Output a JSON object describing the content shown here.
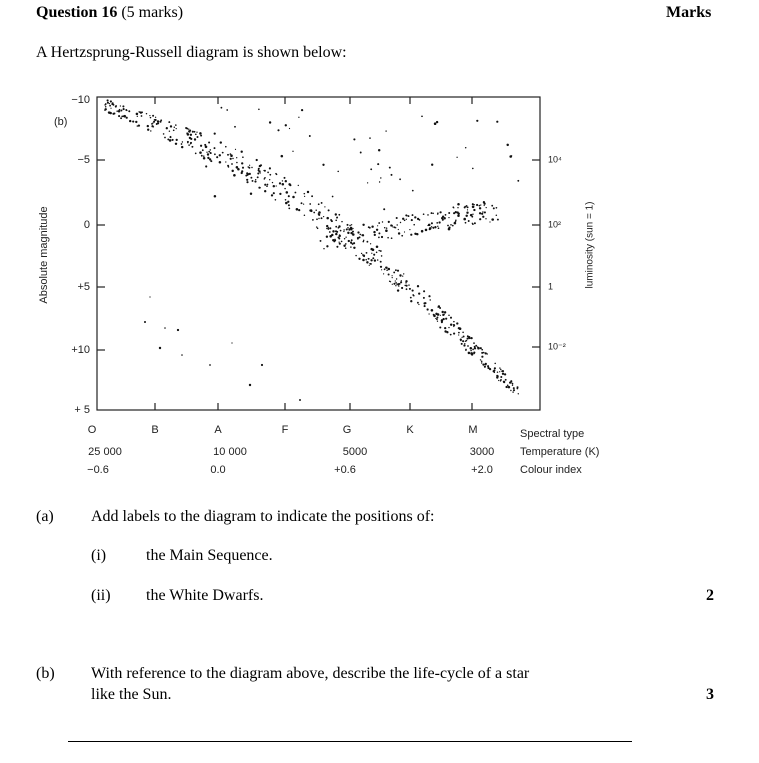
{
  "header": {
    "question": "Question 16",
    "marks_total": "(5 marks)",
    "marks_column": "Marks"
  },
  "intro": "A Hertzsprung-Russell diagram is shown below:",
  "diagram": {
    "part_label": "(b)",
    "y_axis_title": "Absolute magnitude",
    "y_labels": [
      "−10",
      "−5",
      "0",
      "+5",
      "+10",
      "+ 5"
    ],
    "right_axis_title": "luminosity (sun = 1)",
    "right_labels": [
      "10⁴",
      "10²",
      "1",
      "10⁻²"
    ],
    "spectral_types": [
      "O",
      "B",
      "A",
      "F",
      "G",
      "K",
      "M"
    ],
    "temperatures": [
      "25 000",
      "10 000",
      "5000",
      "3000"
    ],
    "colour_indices": [
      "−0.6",
      "0.0",
      "+0.6",
      "+2.0"
    ],
    "row_titles": [
      "Spectral type",
      "Temperature (K)",
      "Colour index"
    ]
  },
  "part_a": {
    "label": "(a)",
    "text": "Add labels to the diagram to indicate the positions of:",
    "items": [
      {
        "label": "(i)",
        "text": "the Main Sequence."
      },
      {
        "label": "(ii)",
        "text": "the White Dwarfs."
      }
    ],
    "marks": "2"
  },
  "part_b": {
    "label": "(b)",
    "text": "With reference to the diagram above, describe the life-cycle of a star",
    "text2": "like the Sun.",
    "marks": "3"
  }
}
